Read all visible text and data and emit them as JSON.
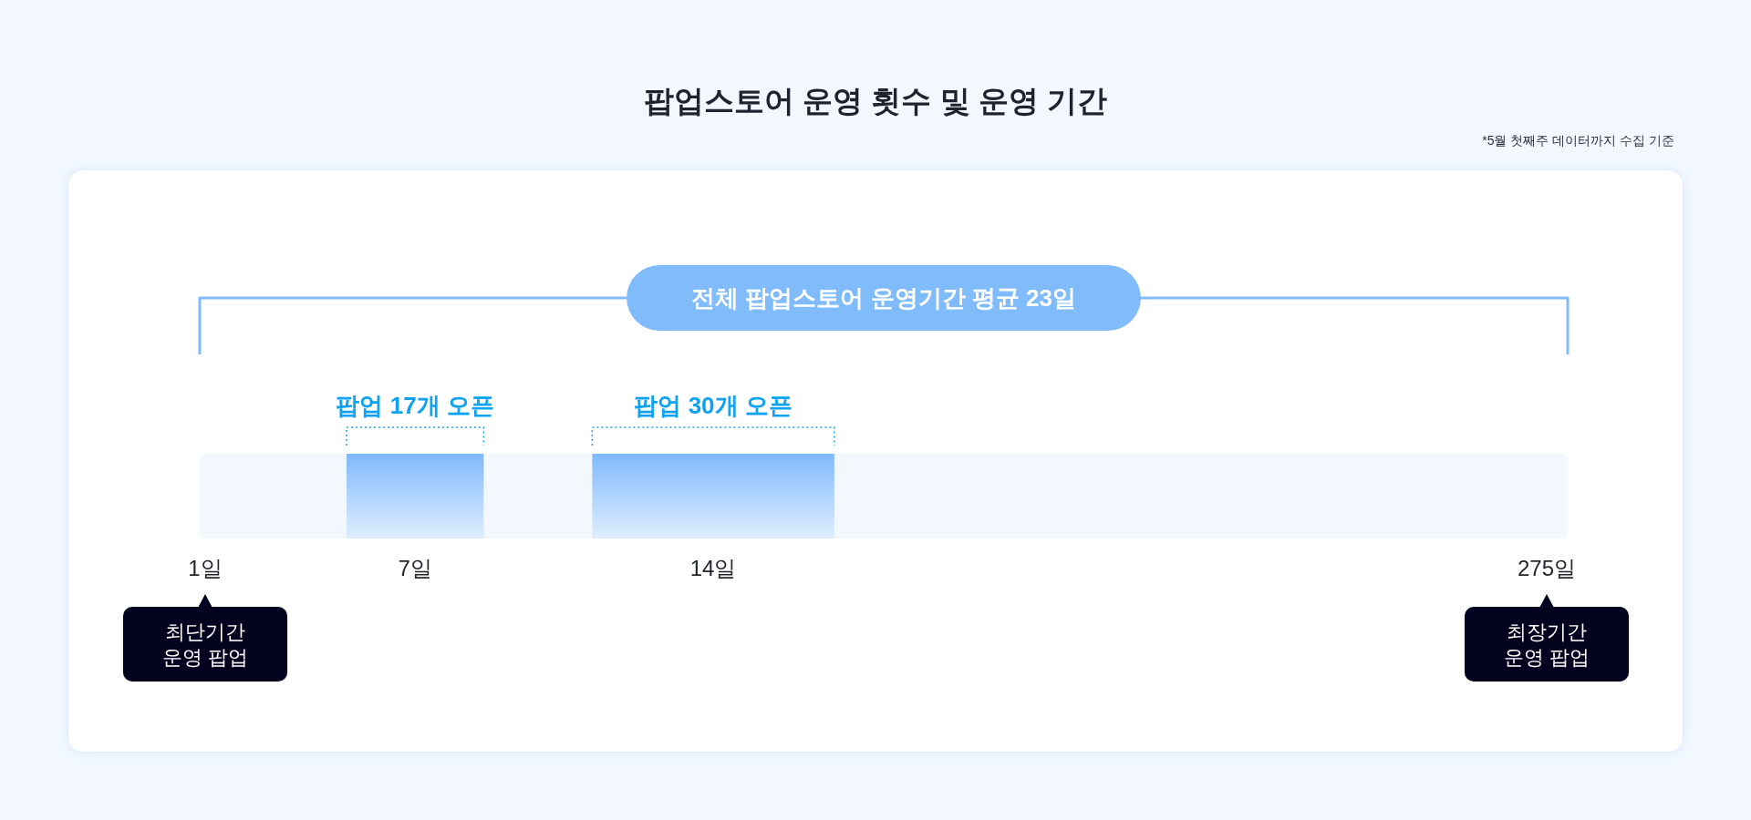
{
  "chart_data": {
    "type": "other",
    "title": "팝업스토어 운영 횟수 및 운영 기간",
    "categories": [
      "1일",
      "7일",
      "14일",
      "275일"
    ],
    "values": [
      null,
      17,
      30,
      null
    ],
    "value_labels": [
      null,
      "팝업 17개 오픈",
      "팝업 30개 오픈",
      null
    ],
    "color": "#80b9fb",
    "annotations": [
      "*5월 첫째주 데이터까지 수집 기준",
      "전체 팝업스토어 운영기간 평균 23일",
      {
        "text": "최단기간 운영 팝업",
        "x": "1일"
      },
      {
        "text": "최장기간 운영 팝업",
        "x": "275일"
      }
    ]
  }
}
